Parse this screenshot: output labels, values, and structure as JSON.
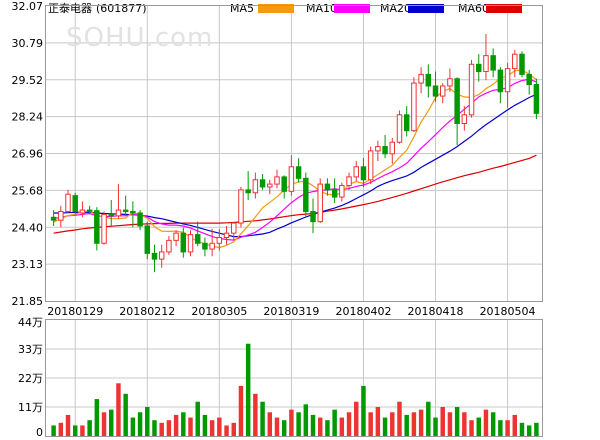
{
  "stock": {
    "name": "正泰电器",
    "code": "(601877)"
  },
  "watermark": "SOHU.com",
  "legend": [
    {
      "label": "MA5",
      "color": "#f59a0c"
    },
    {
      "label": "MA10",
      "color": "#ff00ff"
    },
    {
      "label": "MA20",
      "color": "#0000cc"
    },
    {
      "label": "MA60",
      "color": "#dd0000"
    }
  ],
  "colors": {
    "up": "#ee3333",
    "down": "#009900",
    "grid": "#c8c8c8",
    "axis_text": "#000000"
  },
  "chart_data": {
    "type": "candlestick",
    "price_axis": {
      "ylim": [
        21.85,
        32.07
      ],
      "ticks": [
        "32.07",
        "30.79",
        "29.52",
        "28.24",
        "26.96",
        "25.68",
        "24.40",
        "23.13",
        "21.85"
      ]
    },
    "volume_axis": {
      "ylim": [
        0,
        440000
      ],
      "ticks": [
        "44万",
        "33万",
        "22万",
        "11万",
        "0"
      ]
    },
    "x_labels": [
      "20180129",
      "20180212",
      "20180305",
      "20180319",
      "20180402",
      "20180418",
      "20180504"
    ],
    "x_label_positions": [
      3,
      13,
      23,
      33,
      43,
      53,
      63
    ],
    "candles": [
      [
        24.75,
        25.0,
        24.45,
        24.65
      ],
      [
        24.65,
        25.15,
        24.4,
        24.95
      ],
      [
        24.95,
        25.7,
        24.9,
        25.55
      ],
      [
        25.5,
        25.6,
        24.85,
        24.95
      ],
      [
        24.9,
        25.3,
        24.75,
        25.0
      ],
      [
        25.0,
        25.15,
        24.85,
        24.98
      ],
      [
        24.98,
        25.1,
        23.6,
        23.85
      ],
      [
        23.85,
        24.95,
        23.8,
        24.85
      ],
      [
        24.85,
        25.35,
        24.45,
        24.8
      ],
      [
        24.8,
        25.9,
        24.7,
        25.0
      ],
      [
        25.0,
        25.5,
        24.8,
        24.95
      ],
      [
        24.95,
        25.3,
        24.4,
        24.9
      ],
      [
        24.9,
        25.0,
        24.3,
        24.45
      ],
      [
        24.45,
        24.6,
        23.3,
        23.5
      ],
      [
        23.5,
        23.8,
        22.85,
        23.3
      ],
      [
        23.3,
        23.8,
        23.0,
        23.55
      ],
      [
        23.55,
        24.1,
        23.45,
        23.95
      ],
      [
        23.95,
        24.3,
        23.75,
        24.2
      ],
      [
        24.2,
        24.4,
        23.35,
        23.55
      ],
      [
        23.55,
        24.3,
        23.4,
        24.15
      ],
      [
        24.15,
        24.6,
        23.75,
        23.85
      ],
      [
        23.85,
        24.05,
        23.4,
        23.65
      ],
      [
        23.65,
        24.35,
        23.4,
        23.85
      ],
      [
        23.85,
        24.35,
        23.6,
        24.05
      ],
      [
        24.05,
        24.45,
        23.8,
        24.2
      ],
      [
        24.2,
        24.6,
        23.95,
        24.55
      ],
      [
        24.55,
        25.8,
        24.4,
        25.7
      ],
      [
        25.7,
        26.35,
        25.35,
        25.6
      ],
      [
        25.6,
        26.3,
        25.4,
        26.05
      ],
      [
        26.05,
        26.25,
        25.7,
        25.8
      ],
      [
        25.8,
        26.05,
        25.55,
        25.9
      ],
      [
        25.9,
        26.4,
        25.75,
        26.15
      ],
      [
        26.15,
        26.2,
        25.4,
        25.65
      ],
      [
        25.65,
        26.9,
        25.5,
        26.5
      ],
      [
        26.5,
        26.8,
        25.95,
        26.1
      ],
      [
        26.1,
        26.3,
        24.75,
        24.95
      ],
      [
        24.95,
        25.4,
        24.2,
        24.6
      ],
      [
        24.6,
        26.1,
        24.55,
        25.9
      ],
      [
        25.9,
        26.1,
        25.5,
        25.7
      ],
      [
        25.7,
        26.1,
        25.25,
        25.45
      ],
      [
        25.45,
        25.95,
        25.3,
        25.85
      ],
      [
        25.85,
        26.3,
        25.7,
        26.15
      ],
      [
        26.15,
        26.7,
        26.0,
        26.5
      ],
      [
        26.5,
        26.8,
        25.8,
        26.05
      ],
      [
        26.05,
        27.2,
        25.9,
        27.05
      ],
      [
        27.05,
        27.4,
        26.7,
        27.2
      ],
      [
        27.2,
        27.6,
        26.8,
        26.95
      ],
      [
        26.95,
        27.5,
        26.6,
        27.35
      ],
      [
        27.35,
        28.45,
        27.3,
        28.3
      ],
      [
        28.3,
        28.6,
        27.55,
        27.75
      ],
      [
        27.75,
        29.6,
        27.7,
        29.4
      ],
      [
        29.4,
        29.95,
        29.05,
        29.7
      ],
      [
        29.7,
        30.05,
        28.9,
        29.3
      ],
      [
        29.3,
        29.8,
        28.75,
        28.95
      ],
      [
        28.95,
        29.4,
        28.7,
        29.3
      ],
      [
        29.3,
        29.9,
        29.1,
        29.55
      ],
      [
        29.55,
        29.6,
        27.25,
        28.0
      ],
      [
        28.0,
        28.6,
        27.75,
        28.3
      ],
      [
        28.3,
        30.2,
        28.2,
        30.05
      ],
      [
        30.05,
        30.4,
        29.45,
        29.8
      ],
      [
        29.8,
        31.1,
        29.5,
        30.35
      ],
      [
        30.35,
        30.6,
        29.6,
        29.85
      ],
      [
        29.85,
        29.95,
        28.7,
        29.1
      ],
      [
        29.1,
        30.1,
        28.55,
        29.9
      ],
      [
        29.9,
        30.55,
        29.6,
        30.4
      ],
      [
        30.4,
        30.5,
        29.6,
        29.7
      ],
      [
        29.7,
        29.85,
        29.0,
        29.35
      ],
      [
        29.35,
        29.55,
        28.15,
        28.35
      ]
    ],
    "volume": [
      4,
      5,
      8,
      4,
      4,
      6,
      14,
      9,
      10,
      20,
      16,
      7,
      9,
      11,
      6,
      5,
      6,
      8,
      9,
      7,
      13,
      8,
      6,
      7,
      4,
      5,
      19,
      35,
      16,
      13,
      9,
      7,
      6,
      10,
      9,
      12,
      8,
      7,
      6,
      10,
      7,
      9,
      13,
      19,
      9,
      11,
      7,
      9,
      13,
      8,
      9,
      10,
      13,
      7,
      11,
      9,
      11,
      9,
      6,
      7,
      10,
      9,
      6,
      6,
      8,
      5,
      4,
      5
    ],
    "ma5": [
      24.58,
      24.7,
      24.81,
      24.85,
      24.95,
      24.97,
      24.81,
      24.77,
      24.7,
      24.7,
      24.73,
      24.92,
      24.84,
      24.71,
      24.42,
      24.27,
      24.26,
      24.27,
      24.23,
      24.05,
      23.91,
      23.83,
      23.75,
      23.7,
      23.78,
      23.9,
      24.18,
      24.46,
      24.76,
      25.08,
      25.27,
      25.46,
      25.7,
      25.89,
      25.98,
      25.99,
      25.84,
      25.65,
      25.55,
      25.52,
      25.6,
      25.89,
      25.99,
      25.92,
      26.08,
      26.23,
      26.4,
      26.55,
      26.83,
      27.07,
      27.54,
      28.05,
      28.44,
      28.89,
      29.11,
      29.21,
      29.01,
      28.92,
      28.9,
      29.0,
      29.21,
      29.36,
      29.57,
      29.65,
      29.83,
      29.85,
      29.71,
      29.52
    ],
    "ma10": [
      24.7,
      24.75,
      24.8,
      24.82,
      24.85,
      24.88,
      24.8,
      24.77,
      24.78,
      24.8,
      24.8,
      24.85,
      24.83,
      24.76,
      24.6,
      24.52,
      24.48,
      24.48,
      24.45,
      24.38,
      24.28,
      24.18,
      24.08,
      24.02,
      23.98,
      23.96,
      24.06,
      24.14,
      24.23,
      24.4,
      24.58,
      24.8,
      25.03,
      25.26,
      25.44,
      25.58,
      25.64,
      25.68,
      25.7,
      25.74,
      25.7,
      25.75,
      25.82,
      25.87,
      25.96,
      26.09,
      26.22,
      26.33,
      26.46,
      26.62,
      26.88,
      27.14,
      27.37,
      27.61,
      27.86,
      28.09,
      28.28,
      28.49,
      28.7,
      28.92,
      29.05,
      29.15,
      29.18,
      29.24,
      29.39,
      29.49,
      29.53,
      29.44
    ],
    "ma20": [
      24.9,
      24.9,
      24.91,
      24.92,
      24.92,
      24.93,
      24.9,
      24.88,
      24.87,
      24.86,
      24.85,
      24.84,
      24.82,
      24.79,
      24.74,
      24.7,
      24.64,
      24.58,
      24.52,
      24.47,
      24.4,
      24.33,
      24.26,
      24.2,
      24.14,
      24.08,
      24.08,
      24.11,
      24.14,
      24.17,
      24.23,
      24.34,
      24.44,
      24.56,
      24.66,
      24.76,
      24.85,
      24.93,
      25.0,
      25.07,
      25.16,
      25.27,
      25.4,
      25.53,
      25.66,
      25.82,
      25.93,
      26.02,
      26.1,
      26.18,
      26.31,
      26.48,
      26.62,
      26.76,
      26.9,
      27.04,
      27.2,
      27.38,
      27.56,
      27.77,
      27.96,
      28.13,
      28.3,
      28.47,
      28.63,
      28.76,
      28.9,
      29.01
    ],
    "ma60": [
      24.2,
      24.24,
      24.28,
      24.31,
      24.35,
      24.38,
      24.4,
      24.42,
      24.44,
      24.46,
      24.48,
      24.5,
      24.51,
      24.52,
      24.53,
      24.54,
      24.54,
      24.55,
      24.55,
      24.55,
      24.55,
      24.55,
      24.55,
      24.55,
      24.56,
      24.57,
      24.59,
      24.61,
      24.63,
      24.66,
      24.69,
      24.73,
      24.77,
      24.81,
      24.84,
      24.86,
      24.88,
      24.92,
      24.96,
      25.0,
      25.04,
      25.09,
      25.14,
      25.19,
      25.24,
      25.3,
      25.37,
      25.44,
      25.51,
      25.58,
      25.66,
      25.74,
      25.82,
      25.9,
      25.98,
      26.05,
      26.12,
      26.19,
      26.25,
      26.31,
      26.38,
      26.45,
      26.51,
      26.58,
      26.65,
      26.72,
      26.79,
      26.9
    ]
  }
}
